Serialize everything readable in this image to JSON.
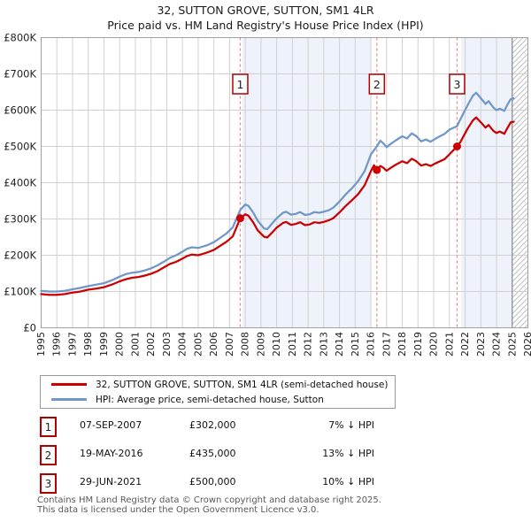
{
  "title": {
    "line1": "32, SUTTON GROVE, SUTTON, SM1 4LR",
    "line2": "Price paid vs. HM Land Registry's House Price Index (HPI)"
  },
  "chart_data": {
    "type": "line",
    "x_range": [
      1995,
      2026
    ],
    "x_ticks": [
      1995,
      1996,
      1997,
      1998,
      1999,
      2000,
      2001,
      2002,
      2003,
      2004,
      2005,
      2006,
      2007,
      2008,
      2009,
      2010,
      2011,
      2012,
      2013,
      2014,
      2015,
      2016,
      2017,
      2018,
      2019,
      2020,
      2021,
      2022,
      2023,
      2024,
      2025,
      2026
    ],
    "y_max_k": 800,
    "y_tick_step_k": 100,
    "y_tick_labels": [
      "£0",
      "£100K",
      "£200K",
      "£300K",
      "£400K",
      "£500K",
      "£600K",
      "£700K",
      "£800K"
    ],
    "grid": true,
    "legend_position": "bottom",
    "shaded_bands": [
      {
        "from": 2007.8,
        "to": 2016.0
      },
      {
        "from": 2021.75,
        "to": 2025.0
      }
    ],
    "hatch_band": {
      "from": 2025.0,
      "to": 2026.0
    },
    "markers": [
      {
        "label": "1",
        "year": 2007.68,
        "value_k": 302
      },
      {
        "label": "2",
        "year": 2016.38,
        "value_k": 435
      },
      {
        "label": "3",
        "year": 2021.49,
        "value_k": 500
      }
    ],
    "series": [
      {
        "name": "32, SUTTON GROVE, SUTTON, SM1 4LR (semi-detached house)",
        "color": "#cc0000",
        "points": [
          [
            1995.0,
            93
          ],
          [
            1995.5,
            91
          ],
          [
            1996.0,
            91
          ],
          [
            1996.5,
            93
          ],
          [
            1997.0,
            97
          ],
          [
            1997.5,
            100
          ],
          [
            1998.0,
            105
          ],
          [
            1998.5,
            108
          ],
          [
            1999.0,
            112
          ],
          [
            1999.5,
            119
          ],
          [
            2000.0,
            128
          ],
          [
            2000.4,
            134
          ],
          [
            2000.8,
            138
          ],
          [
            2001.2,
            140
          ],
          [
            2001.6,
            144
          ],
          [
            2002.0,
            149
          ],
          [
            2002.4,
            156
          ],
          [
            2002.8,
            166
          ],
          [
            2003.2,
            176
          ],
          [
            2003.6,
            182
          ],
          [
            2004.0,
            191
          ],
          [
            2004.3,
            198
          ],
          [
            2004.6,
            202
          ],
          [
            2005.0,
            200
          ],
          [
            2005.3,
            204
          ],
          [
            2005.6,
            208
          ],
          [
            2006.0,
            215
          ],
          [
            2006.4,
            226
          ],
          [
            2006.8,
            237
          ],
          [
            2007.2,
            252
          ],
          [
            2007.68,
            302
          ],
          [
            2008.0,
            313
          ],
          [
            2008.2,
            309
          ],
          [
            2008.5,
            291
          ],
          [
            2008.8,
            268
          ],
          [
            2009.2,
            251
          ],
          [
            2009.4,
            249
          ],
          [
            2009.7,
            262
          ],
          [
            2010.0,
            276
          ],
          [
            2010.4,
            289
          ],
          [
            2010.6,
            292
          ],
          [
            2010.9,
            284
          ],
          [
            2011.2,
            286
          ],
          [
            2011.5,
            291
          ],
          [
            2011.8,
            283
          ],
          [
            2012.1,
            285
          ],
          [
            2012.4,
            291
          ],
          [
            2012.7,
            289
          ],
          [
            2013.0,
            292
          ],
          [
            2013.3,
            296
          ],
          [
            2013.6,
            302
          ],
          [
            2014.0,
            318
          ],
          [
            2014.4,
            336
          ],
          [
            2014.8,
            352
          ],
          [
            2015.2,
            369
          ],
          [
            2015.6,
            393
          ],
          [
            2016.0,
            432
          ],
          [
            2016.2,
            448
          ],
          [
            2016.38,
            435
          ],
          [
            2016.6,
            446
          ],
          [
            2016.8,
            441
          ],
          [
            2017.0,
            433
          ],
          [
            2017.3,
            442
          ],
          [
            2017.6,
            450
          ],
          [
            2018.0,
            459
          ],
          [
            2018.3,
            454
          ],
          [
            2018.6,
            466
          ],
          [
            2018.9,
            459
          ],
          [
            2019.2,
            447
          ],
          [
            2019.5,
            451
          ],
          [
            2019.8,
            446
          ],
          [
            2020.1,
            453
          ],
          [
            2020.4,
            459
          ],
          [
            2020.7,
            465
          ],
          [
            2021.0,
            478
          ],
          [
            2021.49,
            500
          ],
          [
            2021.7,
            512
          ],
          [
            2022.0,
            536
          ],
          [
            2022.2,
            552
          ],
          [
            2022.5,
            572
          ],
          [
            2022.7,
            580
          ],
          [
            2022.9,
            571
          ],
          [
            2023.1,
            562
          ],
          [
            2023.3,
            552
          ],
          [
            2023.5,
            559
          ],
          [
            2023.8,
            543
          ],
          [
            2024.0,
            537
          ],
          [
            2024.2,
            541
          ],
          [
            2024.5,
            535
          ],
          [
            2024.7,
            551
          ],
          [
            2024.9,
            566
          ],
          [
            2025.1,
            568
          ]
        ]
      },
      {
        "name": "HPI: Average price, semi-detached house, Sutton",
        "color": "#7097c9",
        "points": [
          [
            1995.0,
            102
          ],
          [
            1995.5,
            100
          ],
          [
            1996.0,
            100
          ],
          [
            1996.5,
            102
          ],
          [
            1997.0,
            106
          ],
          [
            1997.5,
            110
          ],
          [
            1998.0,
            115
          ],
          [
            1998.5,
            119
          ],
          [
            1999.0,
            123
          ],
          [
            1999.5,
            131
          ],
          [
            2000.0,
            141
          ],
          [
            2000.4,
            148
          ],
          [
            2000.8,
            152
          ],
          [
            2001.2,
            154
          ],
          [
            2001.6,
            158
          ],
          [
            2002.0,
            164
          ],
          [
            2002.4,
            172
          ],
          [
            2002.8,
            182
          ],
          [
            2003.2,
            193
          ],
          [
            2003.6,
            200
          ],
          [
            2004.0,
            210
          ],
          [
            2004.3,
            218
          ],
          [
            2004.6,
            222
          ],
          [
            2005.0,
            220
          ],
          [
            2005.3,
            224
          ],
          [
            2005.6,
            228
          ],
          [
            2006.0,
            236
          ],
          [
            2006.4,
            248
          ],
          [
            2006.8,
            260
          ],
          [
            2007.2,
            277
          ],
          [
            2007.68,
            325
          ],
          [
            2008.0,
            340
          ],
          [
            2008.2,
            336
          ],
          [
            2008.5,
            318
          ],
          [
            2008.8,
            295
          ],
          [
            2009.2,
            274
          ],
          [
            2009.4,
            272
          ],
          [
            2009.7,
            287
          ],
          [
            2010.0,
            302
          ],
          [
            2010.4,
            317
          ],
          [
            2010.6,
            320
          ],
          [
            2010.9,
            312
          ],
          [
            2011.2,
            314
          ],
          [
            2011.5,
            319
          ],
          [
            2011.8,
            311
          ],
          [
            2012.1,
            313
          ],
          [
            2012.4,
            319
          ],
          [
            2012.7,
            317
          ],
          [
            2013.0,
            320
          ],
          [
            2013.3,
            324
          ],
          [
            2013.6,
            331
          ],
          [
            2014.0,
            348
          ],
          [
            2014.4,
            368
          ],
          [
            2014.8,
            385
          ],
          [
            2015.2,
            405
          ],
          [
            2015.6,
            432
          ],
          [
            2016.0,
            478
          ],
          [
            2016.38,
            500
          ],
          [
            2016.6,
            516
          ],
          [
            2016.8,
            508
          ],
          [
            2017.0,
            498
          ],
          [
            2017.3,
            508
          ],
          [
            2017.6,
            517
          ],
          [
            2018.0,
            528
          ],
          [
            2018.3,
            522
          ],
          [
            2018.6,
            536
          ],
          [
            2018.9,
            528
          ],
          [
            2019.2,
            514
          ],
          [
            2019.5,
            519
          ],
          [
            2019.8,
            513
          ],
          [
            2020.1,
            521
          ],
          [
            2020.4,
            528
          ],
          [
            2020.7,
            535
          ],
          [
            2021.0,
            546
          ],
          [
            2021.49,
            556
          ],
          [
            2021.7,
            575
          ],
          [
            2022.0,
            600
          ],
          [
            2022.2,
            617
          ],
          [
            2022.5,
            640
          ],
          [
            2022.7,
            648
          ],
          [
            2022.9,
            638
          ],
          [
            2023.1,
            628
          ],
          [
            2023.3,
            617
          ],
          [
            2023.5,
            625
          ],
          [
            2023.8,
            607
          ],
          [
            2024.0,
            600
          ],
          [
            2024.2,
            604
          ],
          [
            2024.5,
            598
          ],
          [
            2024.7,
            615
          ],
          [
            2024.9,
            630
          ],
          [
            2025.1,
            633
          ]
        ]
      }
    ]
  },
  "legend": [
    {
      "label": "32, SUTTON GROVE, SUTTON, SM1 4LR (semi-detached house)"
    },
    {
      "label": "HPI: Average price, semi-detached house, Sutton"
    }
  ],
  "transactions": [
    {
      "num": "1",
      "date": "07-SEP-2007",
      "price": "£302,000",
      "hpi": "7% ↓ HPI"
    },
    {
      "num": "2",
      "date": "19-MAY-2016",
      "price": "£435,000",
      "hpi": "13% ↓ HPI"
    },
    {
      "num": "3",
      "date": "29-JUN-2021",
      "price": "£500,000",
      "hpi": "10% ↓ HPI"
    }
  ],
  "footer": {
    "line1": "Contains HM Land Registry data © Crown copyright and database right 2025.",
    "line2": "This data is licensed under the Open Government Licence v3.0."
  },
  "colors": {
    "property_line": "#cc0000",
    "hpi_line": "#7097c9",
    "band_fill": "#eef2fb",
    "grid": "#d0d0d0",
    "plot_border": "#a0a0a0",
    "dashed_marker": "#ee8585",
    "marker_box_border": "#b00000",
    "hatch_line": "#c0c0c0",
    "footer_text": "#595959"
  }
}
